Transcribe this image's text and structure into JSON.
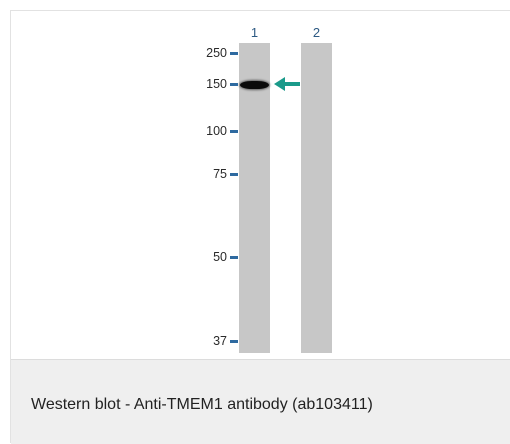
{
  "figure": {
    "lanes": [
      {
        "label": "1"
      },
      {
        "label": "2"
      }
    ],
    "markers": [
      {
        "label": "250"
      },
      {
        "label": "150"
      },
      {
        "label": "100"
      },
      {
        "label": "75"
      },
      {
        "label": "50"
      },
      {
        "label": "37"
      }
    ],
    "arrow_color": "#1a9a8a",
    "lane_color": "#c7c7c7",
    "band_color": "#0a0a0a"
  },
  "caption": {
    "text": "Western blot - Anti-TMEM1 antibody (ab103411)"
  }
}
